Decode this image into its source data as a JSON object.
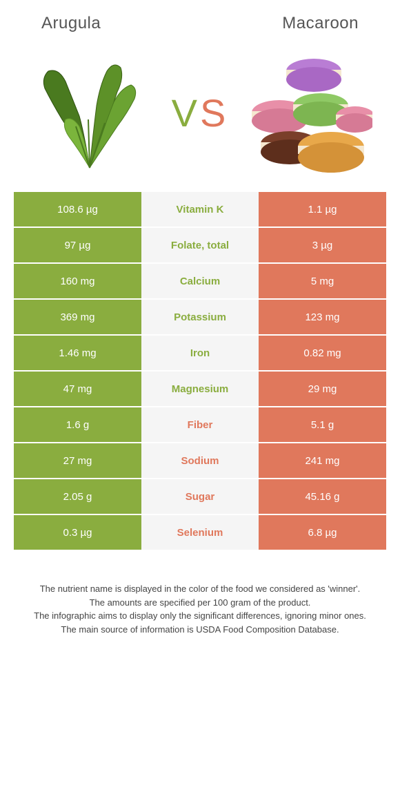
{
  "header": {
    "left_title": "Arugula",
    "right_title": "Macaroon"
  },
  "vs": {
    "v": "V",
    "s": "S"
  },
  "colors": {
    "green": "#8aad3f",
    "coral": "#e0785c",
    "mid_bg": "#f5f5f5",
    "text_gray": "#555"
  },
  "nutrients": [
    {
      "name": "Vitamin K",
      "left": "108.6 µg",
      "right": "1.1 µg",
      "winner": "left"
    },
    {
      "name": "Folate, total",
      "left": "97 µg",
      "right": "3 µg",
      "winner": "left"
    },
    {
      "name": "Calcium",
      "left": "160 mg",
      "right": "5 mg",
      "winner": "left"
    },
    {
      "name": "Potassium",
      "left": "369 mg",
      "right": "123 mg",
      "winner": "left"
    },
    {
      "name": "Iron",
      "left": "1.46 mg",
      "right": "0.82 mg",
      "winner": "left"
    },
    {
      "name": "Magnesium",
      "left": "47 mg",
      "right": "29 mg",
      "winner": "left"
    },
    {
      "name": "Fiber",
      "left": "1.6 g",
      "right": "5.1 g",
      "winner": "right"
    },
    {
      "name": "Sodium",
      "left": "27 mg",
      "right": "241 mg",
      "winner": "right"
    },
    {
      "name": "Sugar",
      "left": "2.05 g",
      "right": "45.16 g",
      "winner": "right"
    },
    {
      "name": "Selenium",
      "left": "0.3 µg",
      "right": "6.8 µg",
      "winner": "right"
    }
  ],
  "footnotes": [
    "The nutrient name is displayed in the color of the food we considered as 'winner'.",
    "The amounts are specified per 100 gram of the product.",
    "The infographic aims to display only the significant differences, ignoring minor ones.",
    "The main source of information is USDA Food Composition Database."
  ]
}
